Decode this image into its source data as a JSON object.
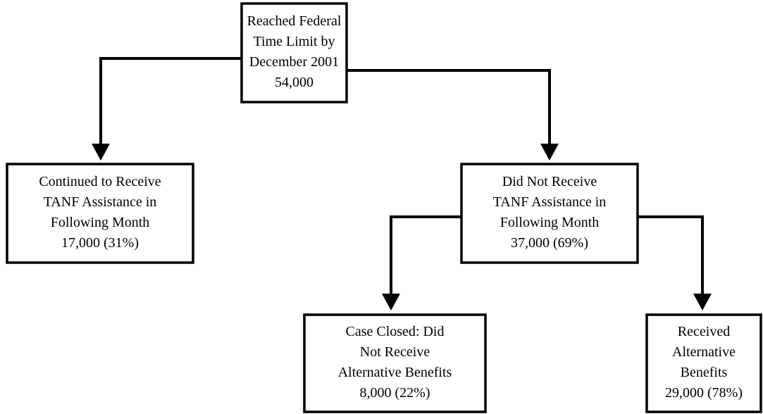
{
  "nodes": [
    {
      "lines": [
        "Reached Federal",
        "Time Limit by",
        "December 2001"
      ],
      "value": "54,000"
    },
    {
      "lines": [
        "Continued to Receive",
        "TANF Assistance in",
        "Following Month"
      ],
      "value": "17,000 (31%)"
    },
    {
      "lines": [
        "Did Not Receive",
        "TANF Assistance in",
        "Following Month"
      ],
      "value": "37,000 (69%)"
    },
    {
      "lines": [
        "Case Closed: Did",
        "Not Receive",
        "Alternative Benefits"
      ],
      "value": "8,000 (22%)"
    },
    {
      "lines": [
        "Received",
        "Alternative",
        "Benefits"
      ],
      "value": "29,000 (78%)"
    }
  ]
}
